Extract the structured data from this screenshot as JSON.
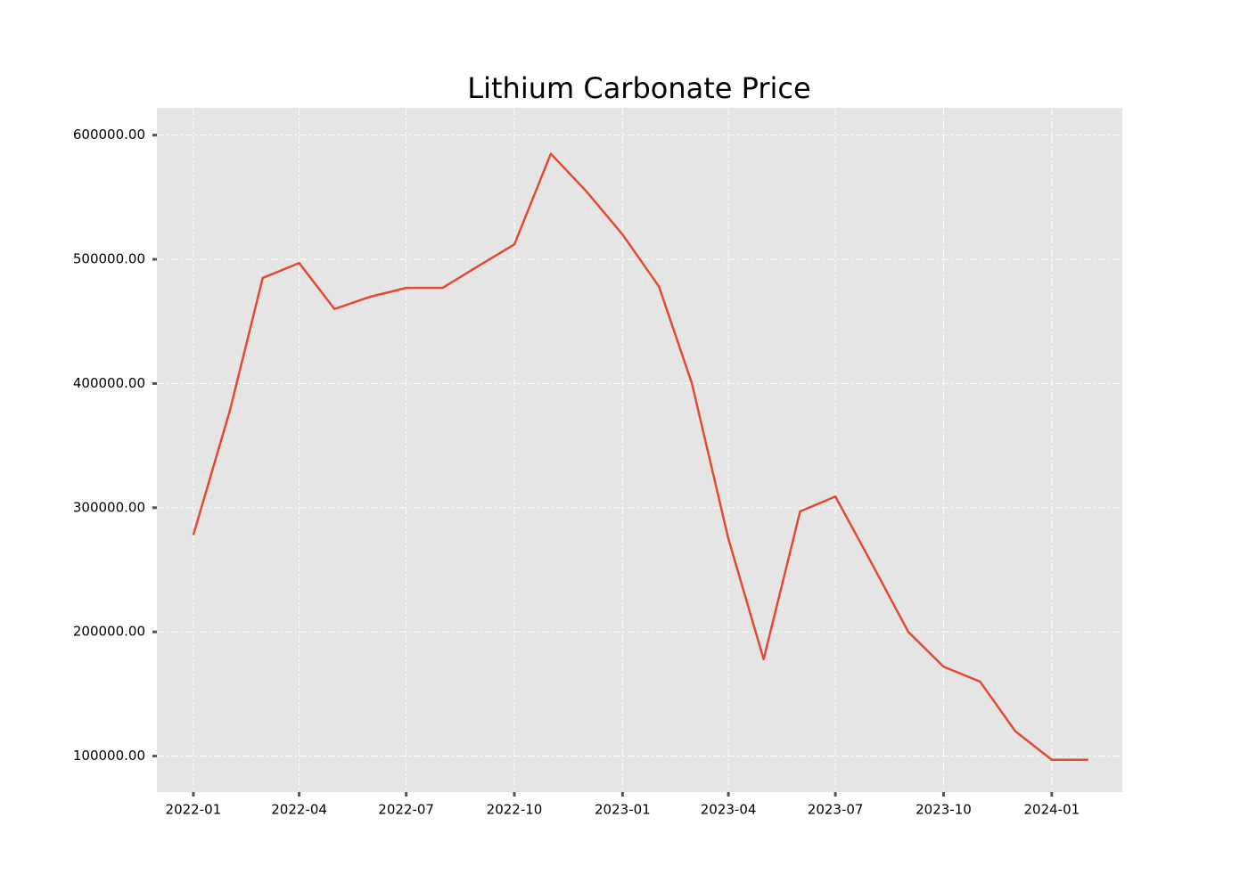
{
  "chart_data": {
    "type": "line",
    "title": "Lithium Carbonate Price",
    "x": [
      "2022-01",
      "2022-02",
      "2022-03",
      "2022-04",
      "2022-05",
      "2022-06",
      "2022-07",
      "2022-08",
      "2022-09",
      "2022-10",
      "2022-11",
      "2022-12",
      "2023-01",
      "2023-02",
      "2023-03",
      "2023-04",
      "2023-05",
      "2023-06",
      "2023-07",
      "2023-08",
      "2023-09",
      "2023-10",
      "2023-11",
      "2023-12",
      "2024-01",
      "2024-02"
    ],
    "series": [
      {
        "name": "Lithium Carbonate",
        "color": "#e24a33",
        "values": [
          278000,
          378000,
          485000,
          497000,
          460000,
          470000,
          477000,
          477000,
          495000,
          512000,
          585000,
          555000,
          520000,
          478000,
          400000,
          275000,
          178000,
          297000,
          309000,
          255000,
          200000,
          172000,
          160000,
          120000,
          97000,
          97000
        ]
      }
    ],
    "xlim": [
      "2021-12",
      "2024-03"
    ],
    "xticks": [
      "2022-01",
      "2022-04",
      "2022-07",
      "2022-10",
      "2023-01",
      "2023-04",
      "2023-07",
      "2023-10",
      "2024-01"
    ],
    "ylim": [
      71000,
      622000
    ],
    "yticks": [
      {
        "value": 100000,
        "label": "100000.00"
      },
      {
        "value": 200000,
        "label": "200000.00"
      },
      {
        "value": 300000,
        "label": "300000.00"
      },
      {
        "value": 400000,
        "label": "400000.00"
      },
      {
        "value": 500000,
        "label": "500000.00"
      },
      {
        "value": 600000,
        "label": "600000.00"
      }
    ],
    "grid": true,
    "background": "#e5e5e5"
  }
}
